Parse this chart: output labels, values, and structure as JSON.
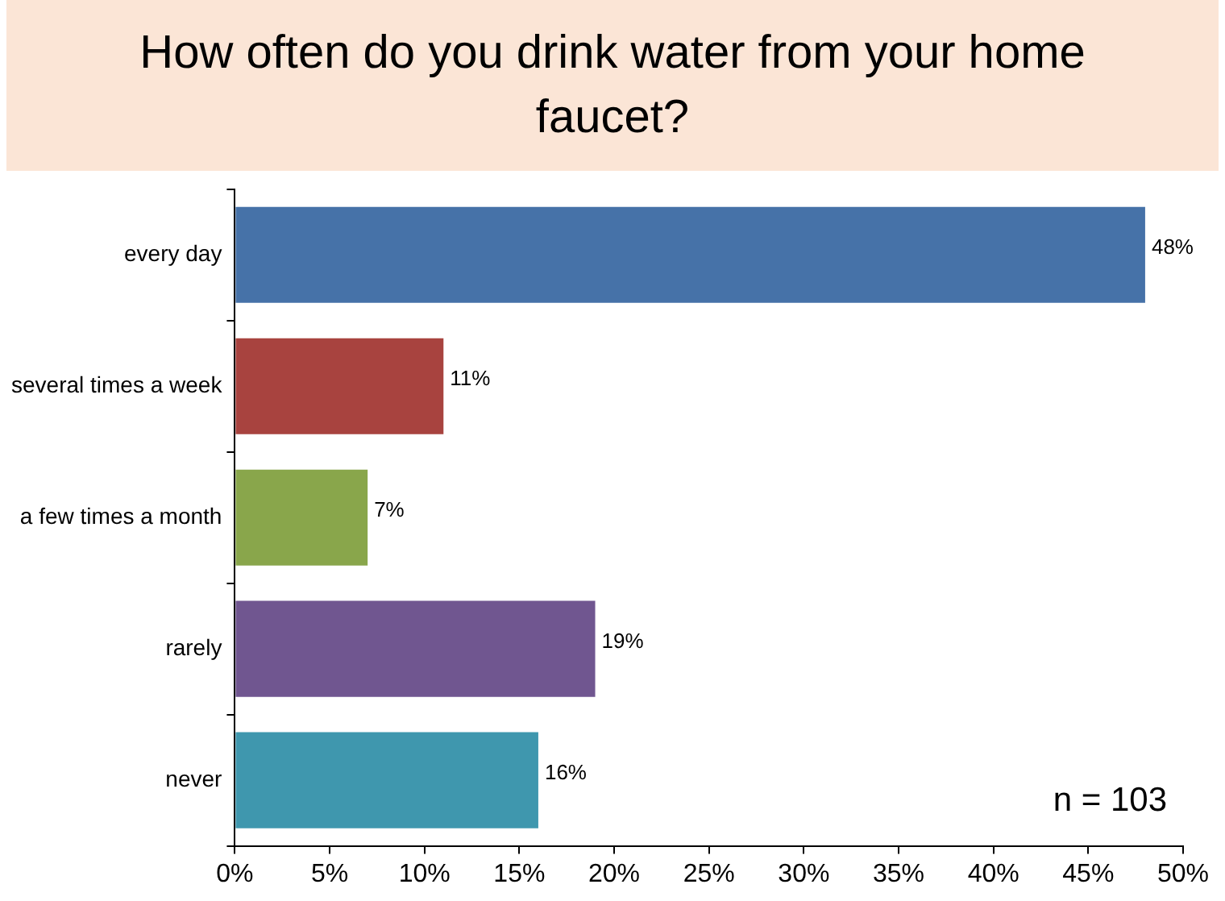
{
  "chart_data": {
    "type": "bar",
    "orientation": "horizontal",
    "title": "How often do you drink water from your home faucet?",
    "categories": [
      "every day",
      "several times a week",
      "a few times a month",
      "rarely",
      "never"
    ],
    "values": [
      48,
      11,
      7,
      19,
      16
    ],
    "colors": [
      "#4672a8",
      "#a8433f",
      "#89a64b",
      "#705690",
      "#3f97ae"
    ],
    "value_labels": [
      "48%",
      "11%",
      "7%",
      "19%",
      "16%"
    ],
    "xlim": [
      0,
      50
    ],
    "xticks": [
      {
        "value": 0,
        "label": "0%"
      },
      {
        "value": 5,
        "label": "5%"
      },
      {
        "value": 10,
        "label": "10%"
      },
      {
        "value": 15,
        "label": "15%"
      },
      {
        "value": 20,
        "label": "20%"
      },
      {
        "value": 25,
        "label": "25%"
      },
      {
        "value": 30,
        "label": "30%"
      },
      {
        "value": 35,
        "label": "35%"
      },
      {
        "value": 40,
        "label": "40%"
      },
      {
        "value": 45,
        "label": "45%"
      },
      {
        "value": 50,
        "label": "50%"
      }
    ],
    "grid": false,
    "legend": false,
    "annotations": [
      "n = 103"
    ]
  }
}
